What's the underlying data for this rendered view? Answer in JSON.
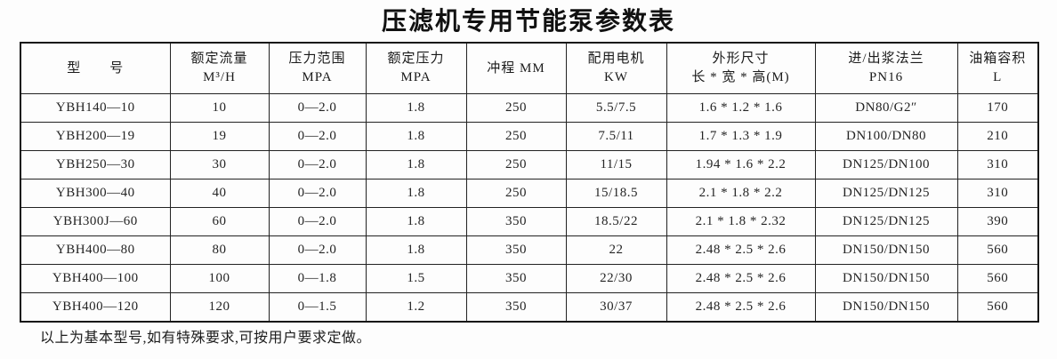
{
  "title": "压滤机专用节能泵参数表",
  "table": {
    "headers": [
      {
        "lines": [
          "型　　号"
        ]
      },
      {
        "lines": [
          "额定流量",
          "M³/H"
        ]
      },
      {
        "lines": [
          "压力范围",
          "MPA"
        ]
      },
      {
        "lines": [
          "额定压力",
          "MPA"
        ]
      },
      {
        "lines": [
          "冲程 MM"
        ]
      },
      {
        "lines": [
          "配用电机",
          "KW"
        ]
      },
      {
        "lines": [
          "外形尺寸",
          "长 * 宽 * 高(M)"
        ]
      },
      {
        "lines": [
          "进/出浆法兰",
          "PN16"
        ]
      },
      {
        "lines": [
          "油箱容积",
          "L"
        ]
      }
    ],
    "rows": [
      [
        "YBH140—10",
        "10",
        "0—2.0",
        "1.8",
        "250",
        "5.5/7.5",
        "1.6 * 1.2 * 1.6",
        "DN80/G2″",
        "170"
      ],
      [
        "YBH200—19",
        "19",
        "0—2.0",
        "1.8",
        "250",
        "7.5/11",
        "1.7 * 1.3 * 1.9",
        "DN100/DN80",
        "210"
      ],
      [
        "YBH250—30",
        "30",
        "0—2.0",
        "1.8",
        "250",
        "11/15",
        "1.94 * 1.6 * 2.2",
        "DN125/DN100",
        "310"
      ],
      [
        "YBH300—40",
        "40",
        "0—2.0",
        "1.8",
        "250",
        "15/18.5",
        "2.1 * 1.8 * 2.2",
        "DN125/DN125",
        "310"
      ],
      [
        "YBH300J—60",
        "60",
        "0—2.0",
        "1.8",
        "350",
        "18.5/22",
        "2.1 * 1.8 * 2.32",
        "DN125/DN125",
        "390"
      ],
      [
        "YBH400—80",
        "80",
        "0—2.0",
        "1.8",
        "350",
        "22",
        "2.48 * 2.5 * 2.6",
        "DN150/DN150",
        "560"
      ],
      [
        "YBH400—100",
        "100",
        "0—1.8",
        "1.5",
        "350",
        "22/30",
        "2.48 * 2.5 * 2.6",
        "DN150/DN150",
        "560"
      ],
      [
        "YBH400—120",
        "120",
        "0—1.5",
        "1.2",
        "350",
        "30/37",
        "2.48 * 2.5 * 2.6",
        "DN150/DN150",
        "560"
      ]
    ]
  },
  "footer": {
    "note": "以上为基本型号,如有特殊要求,可按用户要求定做。"
  }
}
